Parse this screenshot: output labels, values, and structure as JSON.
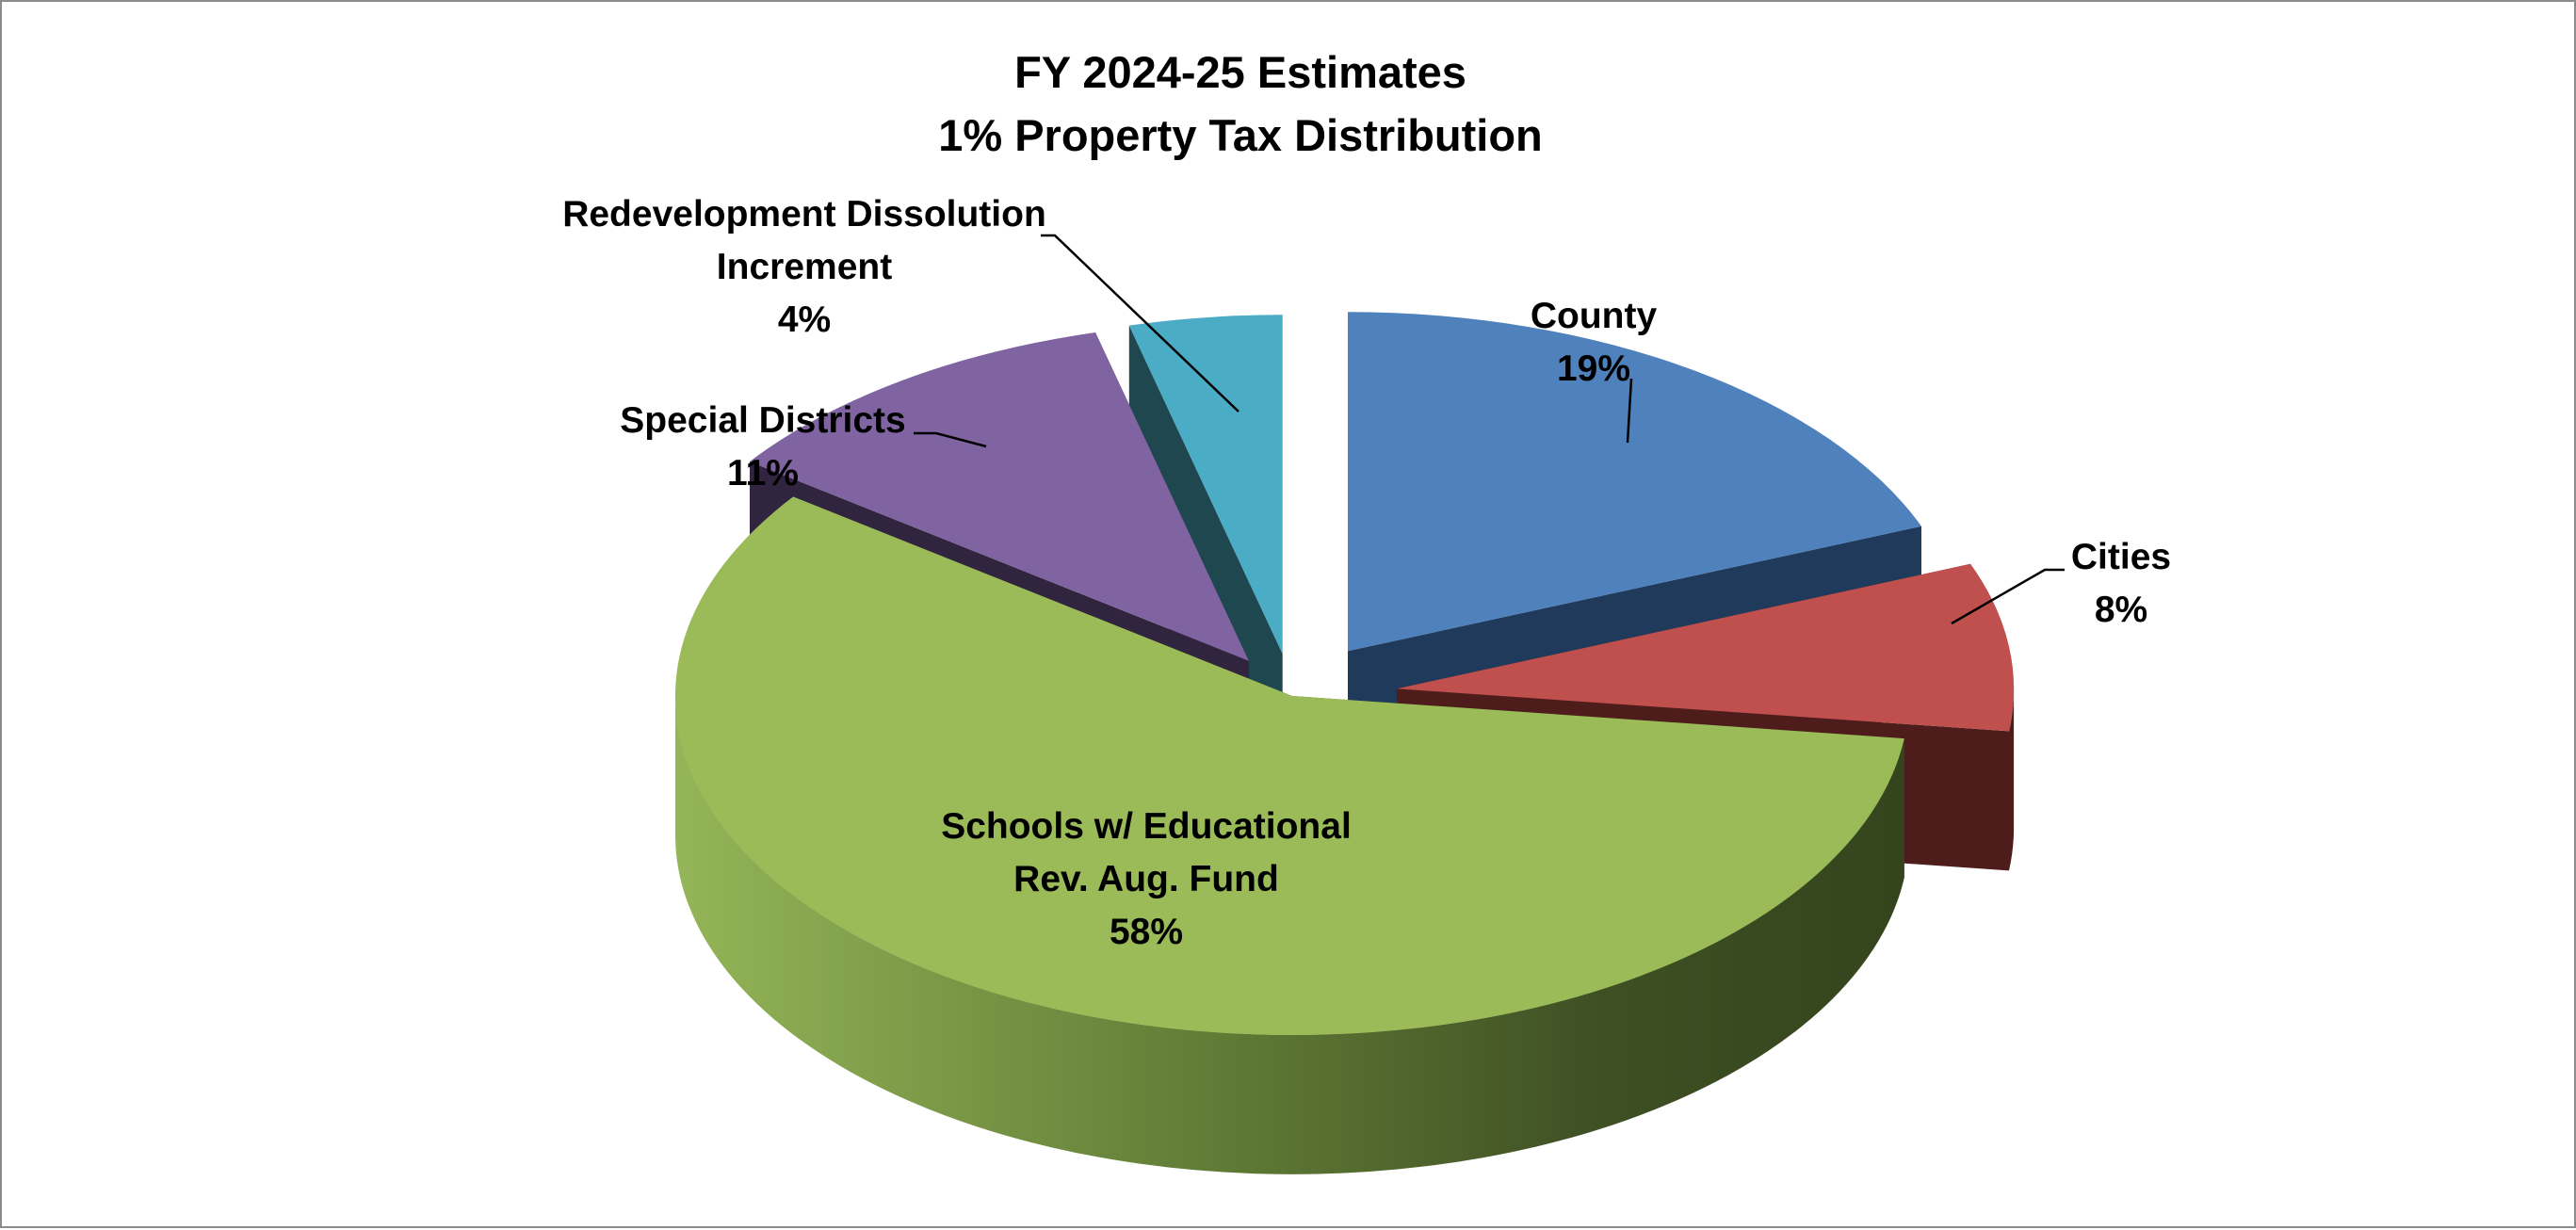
{
  "chart_data": {
    "type": "pie",
    "title": [
      "FY 2024-25 Estimates",
      "1% Property Tax Distribution"
    ],
    "slices": [
      {
        "name": "County",
        "label": [
          "County",
          "19%"
        ],
        "value": 19,
        "color": "#4f81bd"
      },
      {
        "name": "Cities",
        "label": [
          "Cities",
          "8%"
        ],
        "value": 8,
        "color": "#c0504d"
      },
      {
        "name": "Schools w/ Educational Rev. Aug. Fund",
        "label": [
          "Schools w/ Educational",
          "Rev. Aug. Fund",
          "58%"
        ],
        "value": 58,
        "color": "#9bbb59"
      },
      {
        "name": "Special Districts",
        "label": [
          "Special Districts",
          "11%"
        ],
        "value": 11,
        "color": "#8064a2"
      },
      {
        "name": "Redevelopment Dissolution Increment",
        "label": [
          "Redevelopment Dissolution",
          "Increment",
          "4%"
        ],
        "value": 4,
        "color": "#4bacc6"
      }
    ]
  }
}
